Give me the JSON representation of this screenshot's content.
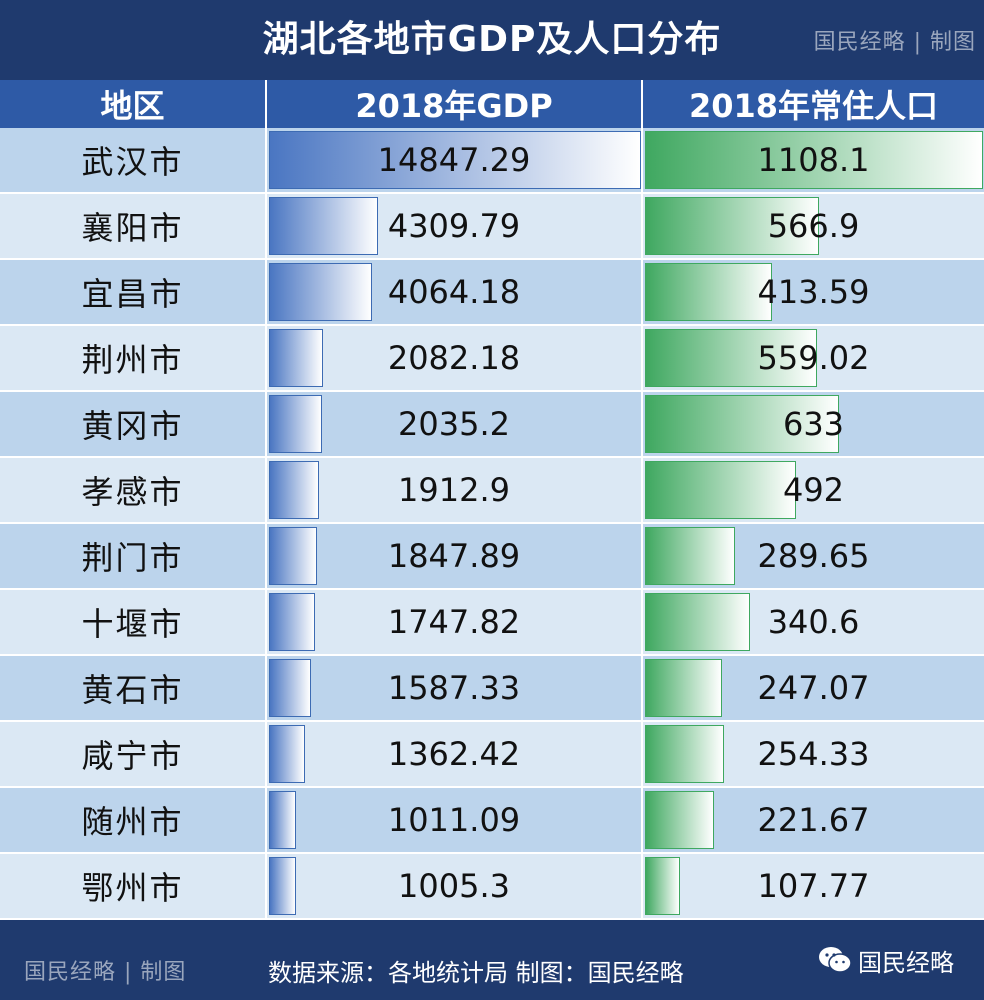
{
  "header": {
    "title": "湖北各地市GDP及人口分布",
    "brand": "国民经略 | 制图"
  },
  "columns": [
    "地区",
    "2018年GDP",
    "2018年常住人口"
  ],
  "colors": {
    "header_bg": "#1f3a6e",
    "column_header_bg": "#2e5aa6",
    "row_light": "#dbe8f4",
    "row_dark": "#bcd4ec",
    "gdp_bar": "#4a76c2",
    "pop_bar": "#3fa860"
  },
  "footer": {
    "brand": "国民经略 | 制图",
    "source": "数据来源：各地统计局 制图：国民经略",
    "wechat_label": "国民经略",
    "wechat_icon": "wechat-icon"
  },
  "chart_data": {
    "type": "table",
    "title": "湖北各地市GDP及人口分布",
    "columns": [
      "地区",
      "2018年GDP",
      "2018年常住人口"
    ],
    "rows": [
      {
        "region": "武汉市",
        "gdp": "14847.29",
        "population": "1108.1"
      },
      {
        "region": "襄阳市",
        "gdp": "4309.79",
        "population": "566.9"
      },
      {
        "region": "宜昌市",
        "gdp": "4064.18",
        "population": "413.59"
      },
      {
        "region": "荆州市",
        "gdp": "2082.18",
        "population": "559.02"
      },
      {
        "region": "黄冈市",
        "gdp": "2035.2",
        "population": "633"
      },
      {
        "region": "孝感市",
        "gdp": "1912.9",
        "population": "492"
      },
      {
        "region": "荆门市",
        "gdp": "1847.89",
        "population": "289.65"
      },
      {
        "region": "十堰市",
        "gdp": "1747.82",
        "population": "340.6"
      },
      {
        "region": "黄石市",
        "gdp": "1587.33",
        "population": "247.07"
      },
      {
        "region": "咸宁市",
        "gdp": "1362.42",
        "population": "254.33"
      },
      {
        "region": "随州市",
        "gdp": "1011.09",
        "population": "221.67"
      },
      {
        "region": "鄂州市",
        "gdp": "1005.3",
        "population": "107.77"
      }
    ]
  }
}
